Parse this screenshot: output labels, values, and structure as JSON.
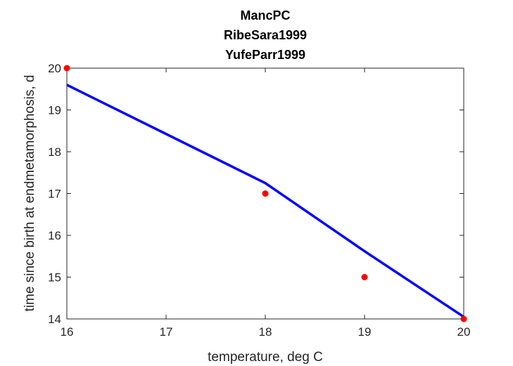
{
  "chart_data": {
    "type": "line",
    "title": [
      "MancPC",
      "RibeSara1999",
      "YufeParr1999"
    ],
    "xlabel": "temperature, deg C",
    "ylabel": "time since birth at endmetamorphosis, d",
    "xlim": [
      16,
      20
    ],
    "ylim": [
      14,
      20
    ],
    "xticks": [
      16,
      17,
      18,
      19,
      20
    ],
    "yticks": [
      14,
      15,
      16,
      17,
      18,
      19,
      20
    ],
    "grid": false,
    "legend": "none",
    "series": [
      {
        "kind": "scatter",
        "color": "#ff0000",
        "x": [
          16,
          18,
          19,
          20
        ],
        "y": [
          20,
          17,
          15,
          14
        ]
      },
      {
        "kind": "line",
        "color": "#0000ff",
        "x": [
          16,
          18,
          19,
          20
        ],
        "y": [
          19.6,
          17.25,
          15.62,
          14.05
        ]
      }
    ]
  }
}
